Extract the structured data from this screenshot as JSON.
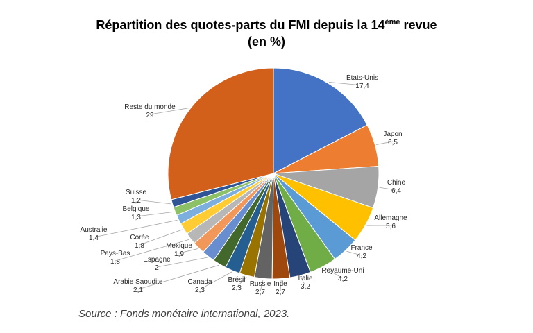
{
  "title": {
    "line1_before": "Répartition des quotes-parts du FMI depuis la 14",
    "line1_sup": "ème",
    "line1_after": " revue",
    "line2": "(en %)"
  },
  "source": "Source : Fonds monétaire international, 2023.",
  "chart_data": {
    "type": "pie",
    "title": "Répartition des quotes-parts du FMI depuis la 14ème revue (en %)",
    "unit": "%",
    "slices": [
      {
        "label": "États-Unis",
        "display": "17,4",
        "value": 17.4,
        "color": "#4472C4"
      },
      {
        "label": "Japon",
        "display": "6,5",
        "value": 6.5,
        "color": "#ED7D31"
      },
      {
        "label": "Chine",
        "display": "6,4",
        "value": 6.4,
        "color": "#A5A5A5"
      },
      {
        "label": "Allemagne",
        "display": "5,6",
        "value": 5.6,
        "color": "#FFC000"
      },
      {
        "label": "France",
        "display": "4,2",
        "value": 4.2,
        "color": "#5B9BD5"
      },
      {
        "label": "Royaume-Uni",
        "display": "4,2",
        "value": 4.2,
        "color": "#70AD47"
      },
      {
        "label": "Italie",
        "display": "3,2",
        "value": 3.2,
        "color": "#264478"
      },
      {
        "label": "Inde",
        "display": "2,7",
        "value": 2.7,
        "color": "#9E480E"
      },
      {
        "label": "Russie",
        "display": "2,7",
        "value": 2.7,
        "color": "#636363"
      },
      {
        "label": "Brésil",
        "display": "2,3",
        "value": 2.3,
        "color": "#997300"
      },
      {
        "label": "Canada",
        "display": "2,3",
        "value": 2.3,
        "color": "#255E91"
      },
      {
        "label": "Arabie Saoudite",
        "display": "2,1",
        "value": 2.1,
        "color": "#43682B"
      },
      {
        "label": "Espagne",
        "display": "2",
        "value": 2.0,
        "color": "#698ED0"
      },
      {
        "label": "Mexique",
        "display": "1,9",
        "value": 1.9,
        "color": "#F1975A"
      },
      {
        "label": "Pays-Bas",
        "display": "1,8",
        "value": 1.8,
        "color": "#B7B7B7"
      },
      {
        "label": "Corée",
        "display": "1,8",
        "value": 1.8,
        "color": "#FFCD33"
      },
      {
        "label": "Australie",
        "display": "1,4",
        "value": 1.4,
        "color": "#7CAFDD"
      },
      {
        "label": "Belgique",
        "display": "1,3",
        "value": 1.3,
        "color": "#8CC168"
      },
      {
        "label": "Suisse",
        "display": "1,2",
        "value": 1.2,
        "color": "#2F5597"
      },
      {
        "label": "Reste du monde",
        "display": "29",
        "value": 29.0,
        "color": "#D2601A"
      }
    ]
  }
}
